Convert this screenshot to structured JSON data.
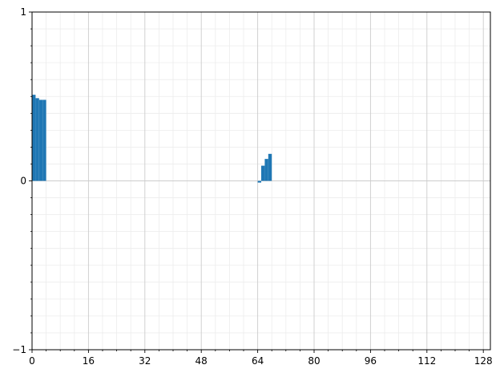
{
  "chart_data": {
    "type": "bar",
    "x": [
      0,
      1,
      2,
      3,
      64,
      65,
      66,
      67
    ],
    "values": [
      0.51,
      0.49,
      0.48,
      0.48,
      -0.01,
      0.09,
      0.13,
      0.16
    ],
    "xlim": [
      0,
      130
    ],
    "ylim": [
      -1,
      1
    ],
    "xticks": [
      0,
      16,
      32,
      48,
      64,
      80,
      96,
      112,
      128
    ],
    "xtick_labels": [
      "0",
      "16",
      "32",
      "48",
      "64",
      "80",
      "96",
      "112",
      "128"
    ],
    "yticks": [
      -1,
      0,
      1
    ],
    "ytick_labels": [
      "−1",
      "0",
      "1"
    ],
    "x_minor_step": 4,
    "y_minor_step": 0.1,
    "grid": true,
    "bar_color": "#1f77b4",
    "major_grid_color": "#cccccc",
    "minor_grid_color": "#ececec"
  }
}
